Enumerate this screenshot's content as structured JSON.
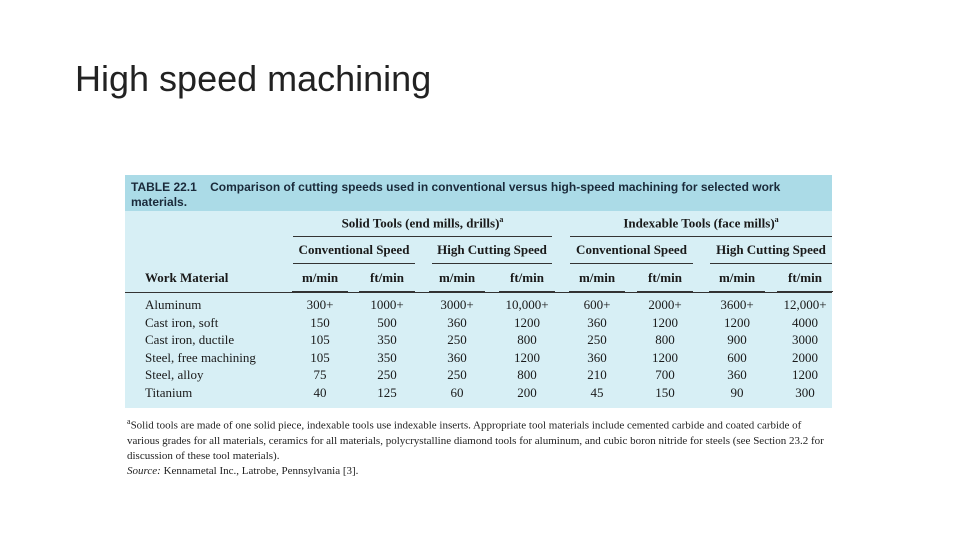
{
  "title": "High speed machining",
  "table": {
    "label": "TABLE 22.1",
    "caption": "Comparison of cutting speeds used in conventional versus high-speed machining for selected work materials.",
    "row_header": "Work Material",
    "groups": [
      "Solid Tools (end mills, drills)",
      "Indexable Tools (face mills)"
    ],
    "group_note": "a",
    "subheaders": [
      "Conventional Speed",
      "High Cutting Speed",
      "Conventional Speed",
      "High Cutting Speed"
    ],
    "units": [
      "m/min",
      "ft/min",
      "m/min",
      "ft/min",
      "m/min",
      "ft/min",
      "m/min",
      "ft/min"
    ],
    "rows": [
      [
        "Aluminum",
        "300+",
        "1000+",
        "3000+",
        "10,000+",
        "600+",
        "2000+",
        "3600+",
        "12,000+"
      ],
      [
        "Cast iron, soft",
        "150",
        "500",
        "360",
        "1200",
        "360",
        "1200",
        "1200",
        "4000"
      ],
      [
        "Cast iron, ductile",
        "105",
        "350",
        "250",
        "800",
        "250",
        "800",
        "900",
        "3000"
      ],
      [
        "Steel, free machining",
        "105",
        "350",
        "360",
        "1200",
        "360",
        "1200",
        "600",
        "2000"
      ],
      [
        "Steel, alloy",
        "75",
        "250",
        "250",
        "800",
        "210",
        "700",
        "360",
        "1200"
      ],
      [
        "Titanium",
        "40",
        "125",
        "60",
        "200",
        "45",
        "150",
        "90",
        "300"
      ]
    ]
  },
  "footnote": {
    "marker": "a",
    "text": "Solid tools are made of one solid piece, indexable tools use indexable inserts. Appropriate tool materials include cemented carbide and coated carbide of various grades for all materials, ceramics for all materials, polycrystalline diamond tools for aluminum, and cubic boron nitride for steels (see Section 23.2 for discussion of these tool materials).",
    "source_label": "Source:",
    "source": "Kennametal Inc., Latrobe, Pennsylvania [3]."
  }
}
